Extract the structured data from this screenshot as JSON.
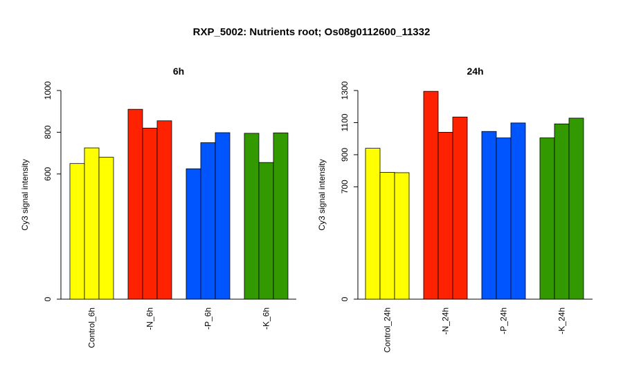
{
  "title": "RXP_5002: Nutrients root; Os08g0112600_11332",
  "chart_data": [
    {
      "type": "bar",
      "title": "6h",
      "ylabel": "Cy3 signal intensity",
      "ylim": [
        0,
        1000
      ],
      "yticks": [
        0,
        600,
        800,
        1000
      ],
      "categories": [
        "Control_6h",
        "-N_6h",
        "-P_6h",
        "-K_6h"
      ],
      "colors": [
        "#ffff00",
        "#ff2200",
        "#0055ff",
        "#339900"
      ],
      "values": [
        [
          650,
          725,
          680
        ],
        [
          910,
          820,
          855
        ],
        [
          625,
          750,
          798
        ],
        [
          795,
          655,
          797
        ]
      ]
    },
    {
      "type": "bar",
      "title": "24h",
      "ylabel": "Cy3 signal intensity",
      "ylim": [
        0,
        1300
      ],
      "yticks": [
        0,
        700,
        900,
        1100,
        1300
      ],
      "categories": [
        "Control_24h",
        "-N_24h",
        "-P_24h",
        "-K_24h"
      ],
      "colors": [
        "#ffff00",
        "#ff2200",
        "#0055ff",
        "#339900"
      ],
      "values": [
        [
          940,
          790,
          788
        ],
        [
          1295,
          1040,
          1135
        ],
        [
          1045,
          1005,
          1098
        ],
        [
          1005,
          1092,
          1128
        ]
      ]
    }
  ]
}
